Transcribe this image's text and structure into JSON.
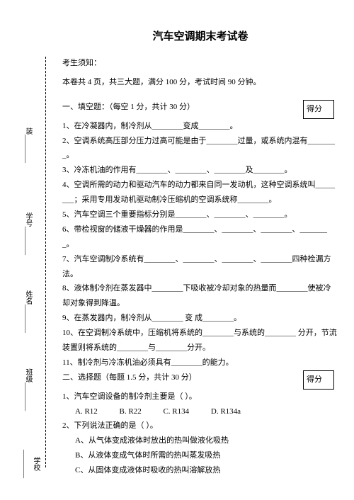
{
  "title": "汽车空调期末考试卷",
  "vertical": {
    "v1": "学校________",
    "v2": "班级________",
    "v3": "姓名________",
    "v4": "学号________",
    "v5": "装________"
  },
  "header": {
    "ks": "考生须知：",
    "desc": "本卷共 4 页，共三大题，满分 100 分，考试时间 90 分钟。"
  },
  "section1": {
    "heading": "一、填空题：（每空 1 分，共计 30 分）",
    "score": "得分",
    "q1": "1、在冷凝器内，制冷剂从________变成________。",
    "q2": "2、空调系统高压部分压力过高可能是由于________过量，或系统内混有________。",
    "q3": "3、冷冻机油的作用有________、________、________及________。",
    "q4": "4、空调所需的动力和驱动汽车的动力都来自同一发动机，这种空调系统叫________；采用专用发动机驱动制冷压缩机的空调系统称________。",
    "q5": "5、汽车空调三个重要指标分别是________、________、________。",
    "q6": "6、带检视窗的储液干燥器的作用是________、________、________、________。",
    "q7": "7、汽车空调制冷系统有________、________、________、________四种检漏方法。",
    "q8": "8、液体制冷剂在蒸发器中________下吸收被冷却对象的热量而________使被冷却对象得到降温。",
    "q9": "9、在蒸发器内，制冷剂从________ 变 成________。",
    "q10": "10、在空调制冷系统中，压缩机将系统的________与系统的________ 分开，节流装置则将系统的________与________分开。",
    "q11": "11、制冷剂与冷冻机油必须具有________的能力。"
  },
  "section2": {
    "heading": "二、选择题（每题 1.5 分，共计 30 分）",
    "score": "得分",
    "q1": "1、汽车空调设备的制冷剂主要是（   ）。",
    "opts1": {
      "a": "A. R12",
      "b": "B. R22",
      "c": "C. R134",
      "d": "D. R134a"
    },
    "q2": "2、下列说法正确的是（   ）。",
    "opts2": {
      "a": "A、从气体变成液体时放出的热叫做液化吸热",
      "b": "B、从液体变成气体时所需的热叫蒸发吸热",
      "c": "C、从固体变成液体时吸收的热叫溶解放热"
    }
  }
}
